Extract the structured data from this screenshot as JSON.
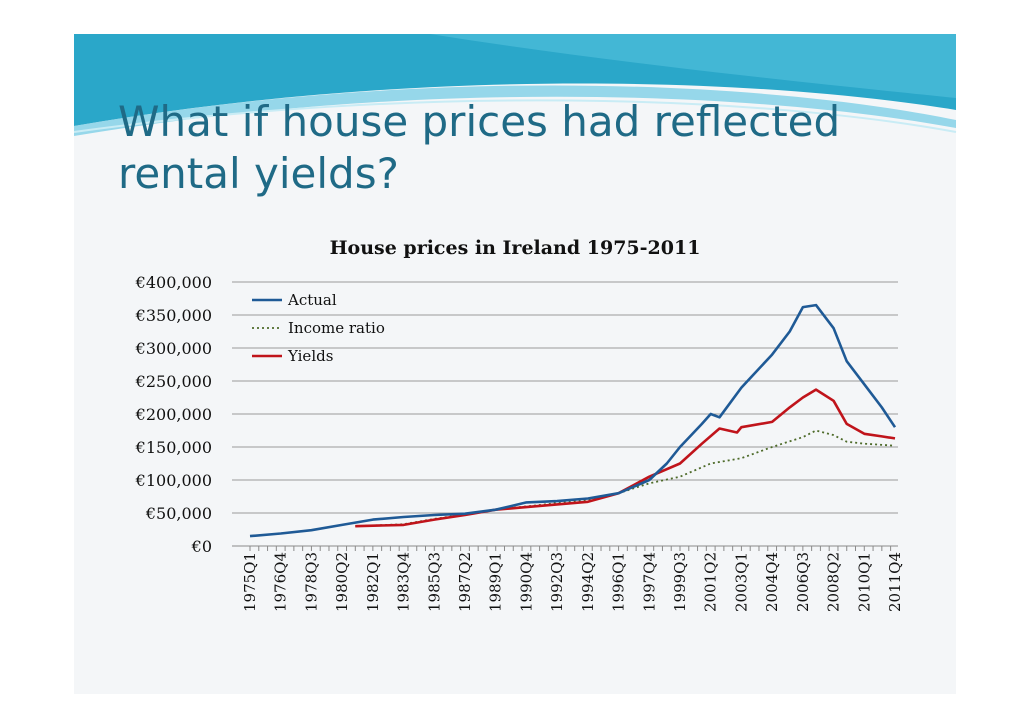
{
  "slide": {
    "title": "What if house prices had reflected rental yields?"
  },
  "colors": {
    "title": "#1f6a86",
    "actual": "#1f5a96",
    "income_ratio": "#4e6b2a",
    "yields": "#c0141b",
    "banner": "#1aa3c6"
  },
  "chart_data": {
    "type": "line",
    "title": "House prices in Ireland 1975-2011",
    "xlabel": "",
    "ylabel": "",
    "ylim": [
      0,
      400000
    ],
    "y_ticks": [
      "€0",
      "€50,000",
      "€100,000",
      "€150,000",
      "€200,000",
      "€250,000",
      "€300,000",
      "€350,000",
      "€400,000"
    ],
    "x_range": [
      "1975Q1",
      "2011Q4"
    ],
    "x_tick_labels": [
      "1975Q1",
      "1976Q4",
      "1978Q3",
      "1980Q2",
      "1982Q1",
      "1983Q4",
      "1985Q3",
      "1987Q2",
      "1989Q1",
      "1990Q4",
      "1992Q3",
      "1994Q2",
      "1996Q1",
      "1997Q4",
      "1999Q3",
      "2001Q2",
      "2003Q1",
      "2004Q4",
      "2006Q3",
      "2008Q2",
      "2010Q1",
      "2011Q4"
    ],
    "grid": true,
    "legend_position": "top-left",
    "series": [
      {
        "name": "Actual",
        "style": "solid",
        "x": [
          "1975Q1",
          "1976Q4",
          "1978Q3",
          "1980Q2",
          "1982Q1",
          "1983Q4",
          "1985Q3",
          "1987Q2",
          "1989Q1",
          "1990Q4",
          "1992Q3",
          "1994Q2",
          "1996Q1",
          "1997Q4",
          "1998Q4",
          "1999Q3",
          "2000Q4",
          "2001Q2",
          "2001Q4",
          "2003Q1",
          "2004Q4",
          "2005Q4",
          "2006Q3",
          "2007Q2",
          "2008Q2",
          "2009Q1",
          "2010Q1",
          "2011Q1",
          "2011Q4"
        ],
        "values": [
          15000,
          19000,
          24000,
          32000,
          40000,
          44000,
          47000,
          49000,
          55000,
          66000,
          68000,
          72000,
          80000,
          100000,
          125000,
          150000,
          185000,
          200000,
          195000,
          240000,
          290000,
          325000,
          362000,
          365000,
          330000,
          280000,
          245000,
          210000,
          180000
        ]
      },
      {
        "name": "Income ratio",
        "style": "dotted",
        "x": [
          "1981Q1",
          "1983Q4",
          "1985Q3",
          "1987Q2",
          "1989Q1",
          "1990Q4",
          "1992Q3",
          "1994Q2",
          "1996Q1",
          "1997Q4",
          "1999Q3",
          "2001Q2",
          "2003Q1",
          "2004Q4",
          "2006Q3",
          "2007Q2",
          "2008Q2",
          "2009Q1",
          "2010Q1",
          "2011Q4"
        ],
        "values": [
          30000,
          33000,
          41000,
          48000,
          55000,
          60000,
          65000,
          70000,
          80000,
          95000,
          105000,
          125000,
          133000,
          150000,
          165000,
          175000,
          168000,
          158000,
          155000,
          152000
        ]
      },
      {
        "name": "Yields",
        "style": "solid",
        "x": [
          "1981Q1",
          "1983Q4",
          "1985Q3",
          "1987Q2",
          "1989Q1",
          "1990Q4",
          "1992Q3",
          "1994Q2",
          "1996Q1",
          "1997Q4",
          "1999Q3",
          "2000Q4",
          "2001Q4",
          "2002Q4",
          "2003Q1",
          "2004Q4",
          "2005Q4",
          "2006Q3",
          "2007Q2",
          "2008Q2",
          "2009Q1",
          "2010Q1",
          "2011Q1",
          "2011Q4"
        ],
        "values": [
          30000,
          32000,
          40000,
          47000,
          55000,
          59000,
          63000,
          67000,
          80000,
          105000,
          125000,
          155000,
          178000,
          172000,
          180000,
          188000,
          210000,
          225000,
          237000,
          220000,
          185000,
          170000,
          166000,
          163000
        ]
      }
    ]
  }
}
